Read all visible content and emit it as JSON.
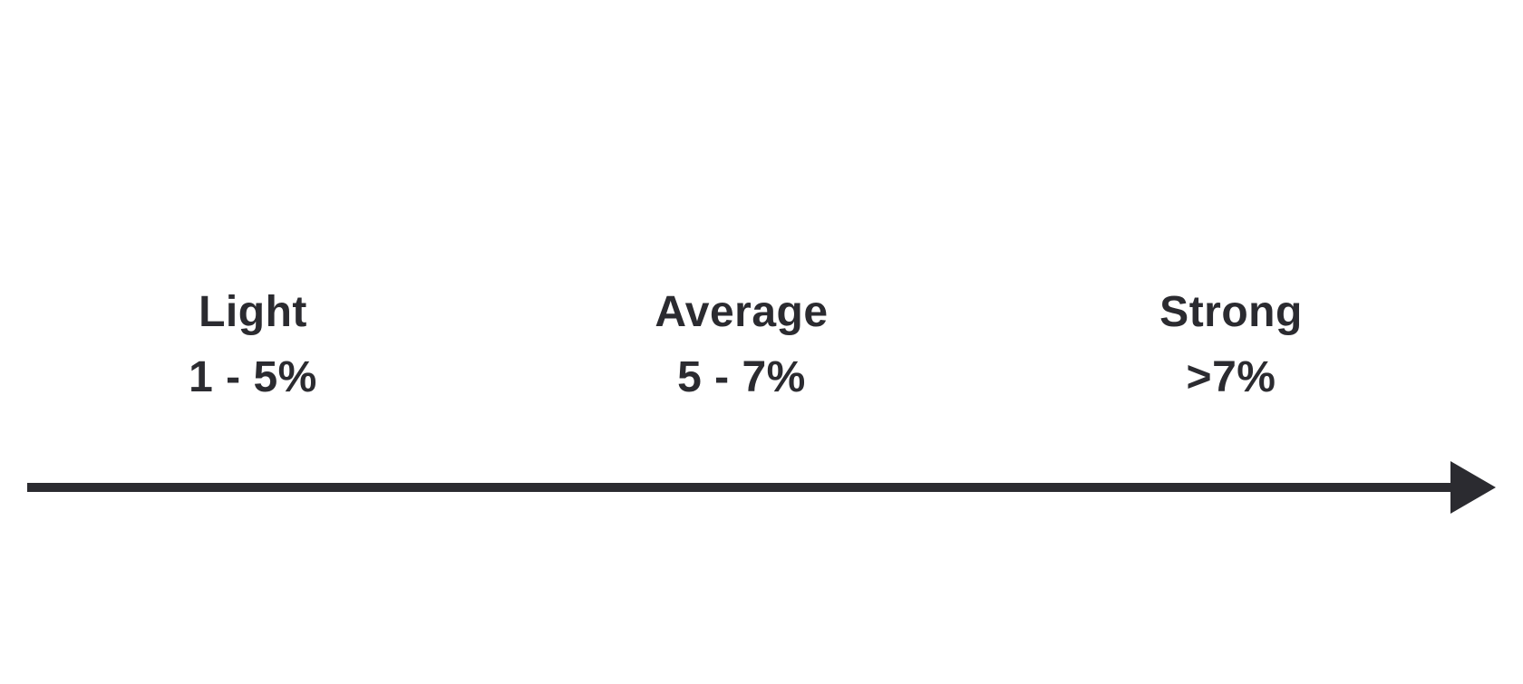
{
  "colors": {
    "ink": "#2b2b30",
    "background": "#ffffff"
  },
  "levels": [
    {
      "name": "Light",
      "range": "1 - 5%"
    },
    {
      "name": "Average",
      "range": "5 - 7%"
    },
    {
      "name": "Strong",
      "range": ">7%"
    }
  ]
}
